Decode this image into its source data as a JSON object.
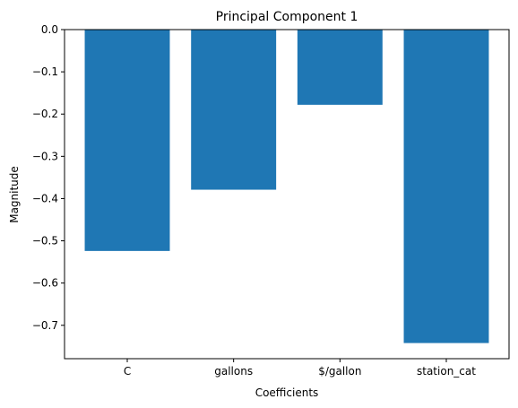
{
  "chart_data": {
    "type": "bar",
    "title": "Principal Component 1",
    "xlabel": "Coefficients",
    "ylabel": "Magnitude",
    "categories": [
      "C",
      "gallons",
      "$/gallon",
      "station_cat"
    ],
    "values": [
      -0.524,
      -0.379,
      -0.178,
      -0.742
    ],
    "ylim": [
      -0.779,
      0.0
    ],
    "yticks": [
      0.0,
      -0.1,
      -0.2,
      -0.3,
      -0.4,
      -0.5,
      -0.6,
      -0.7
    ],
    "ytick_labels": [
      "0.0",
      "−0.1",
      "−0.2",
      "−0.3",
      "−0.4",
      "−0.5",
      "−0.6",
      "−0.7"
    ],
    "bar_color": "#1f77b4",
    "grid": false,
    "legend": null
  }
}
